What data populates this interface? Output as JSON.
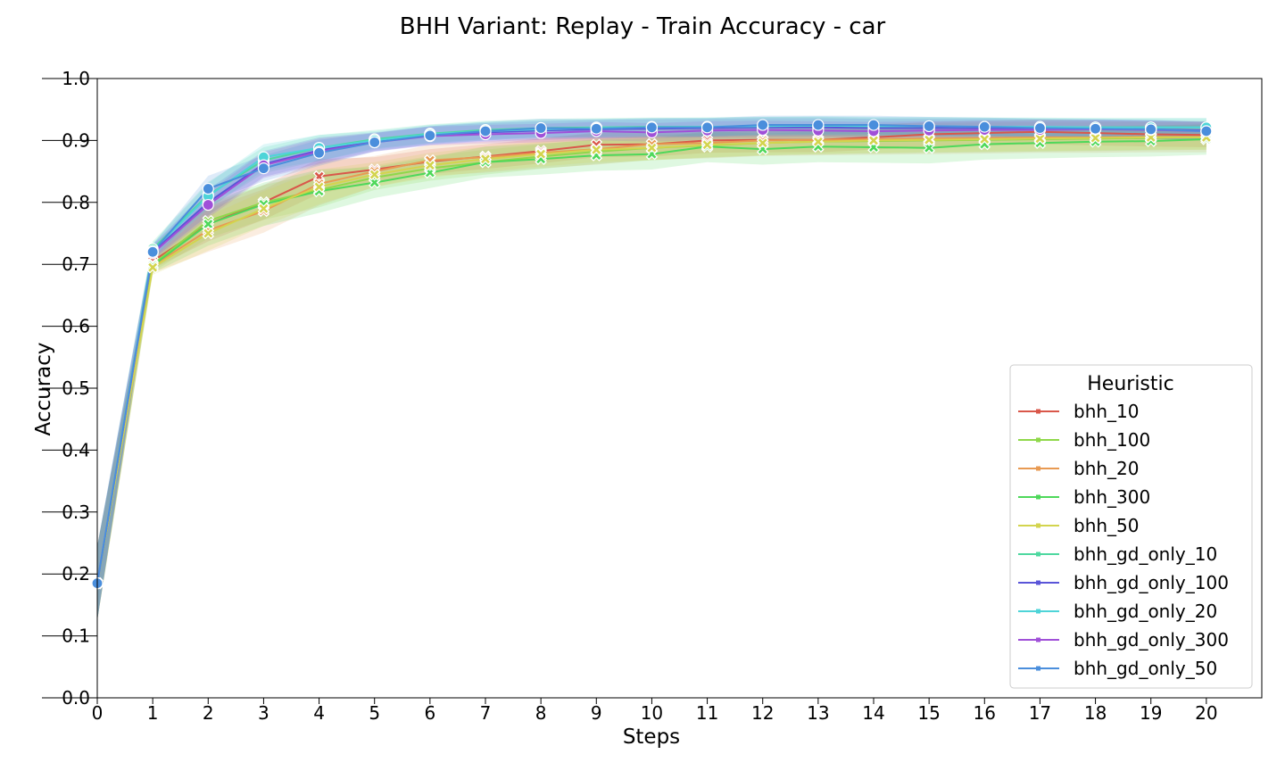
{
  "chart_data": {
    "type": "line",
    "title": "BHH Variant: Replay - Train Accuracy - car",
    "xlabel": "Steps",
    "ylabel": "Accuracy",
    "xlim": [
      0,
      21
    ],
    "ylim": [
      0.0,
      1.0
    ],
    "x": [
      0,
      1,
      2,
      3,
      4,
      5,
      6,
      7,
      8,
      9,
      10,
      11,
      12,
      13,
      14,
      15,
      16,
      17,
      18,
      19,
      20
    ],
    "x_ticks": [
      "0",
      "1",
      "2",
      "3",
      "4",
      "5",
      "6",
      "7",
      "8",
      "9",
      "10",
      "11",
      "12",
      "13",
      "14",
      "15",
      "16",
      "17",
      "18",
      "19",
      "20"
    ],
    "y_ticks": [
      "0.0",
      "0.1",
      "0.2",
      "0.3",
      "0.4",
      "0.5",
      "0.6",
      "0.7",
      "0.8",
      "0.9",
      "1.0"
    ],
    "grid": false,
    "legend": {
      "title": "Heuristic",
      "position": "lower-right"
    },
    "series": [
      {
        "name": "bhh_10",
        "color": "#d9574a",
        "marker": "x",
        "band": 0.02,
        "values": [
          0.185,
          0.705,
          0.765,
          0.8,
          0.842,
          0.853,
          0.866,
          0.874,
          0.883,
          0.893,
          0.894,
          0.9,
          0.901,
          0.901,
          0.905,
          0.91,
          0.912,
          0.914,
          0.912,
          0.91,
          0.909
        ]
      },
      {
        "name": "bhh_100",
        "color": "#8fd84a",
        "marker": "x",
        "band": 0.02,
        "values": [
          0.185,
          0.7,
          0.77,
          0.8,
          0.82,
          0.84,
          0.855,
          0.865,
          0.874,
          0.882,
          0.888,
          0.892,
          0.896,
          0.898,
          0.899,
          0.9,
          0.901,
          0.902,
          0.903,
          0.904,
          0.905
        ]
      },
      {
        "name": "bhh_20",
        "color": "#e89a52",
        "marker": "x",
        "band": 0.025,
        "values": [
          0.185,
          0.698,
          0.755,
          0.786,
          0.83,
          0.85,
          0.868,
          0.873,
          0.88,
          0.886,
          0.894,
          0.896,
          0.9,
          0.901,
          0.902,
          0.903,
          0.904,
          0.905,
          0.905,
          0.906,
          0.906
        ]
      },
      {
        "name": "bhh_300",
        "color": "#4ed85a",
        "marker": "x",
        "band": 0.025,
        "values": [
          0.185,
          0.698,
          0.765,
          0.797,
          0.818,
          0.832,
          0.848,
          0.865,
          0.87,
          0.876,
          0.878,
          0.89,
          0.886,
          0.89,
          0.889,
          0.888,
          0.894,
          0.896,
          0.898,
          0.899,
          0.902
        ]
      },
      {
        "name": "bhh_50",
        "color": "#d3d44e",
        "marker": "x",
        "band": 0.02,
        "values": [
          0.185,
          0.695,
          0.75,
          0.79,
          0.825,
          0.845,
          0.86,
          0.87,
          0.878,
          0.885,
          0.888,
          0.893,
          0.896,
          0.898,
          0.9,
          0.901,
          0.902,
          0.903,
          0.904,
          0.905,
          0.905
        ]
      },
      {
        "name": "bhh_gd_only_10",
        "color": "#4ed8a0",
        "marker": "o",
        "band": 0.015,
        "values": [
          0.185,
          0.725,
          0.812,
          0.868,
          0.888,
          0.902,
          0.911,
          0.917,
          0.92,
          0.921,
          0.922,
          0.922,
          0.923,
          0.923,
          0.922,
          0.922,
          0.922,
          0.921,
          0.921,
          0.921,
          0.921
        ]
      },
      {
        "name": "bhh_gd_only_100",
        "color": "#5a55d8",
        "marker": "o",
        "band": 0.015,
        "values": [
          0.185,
          0.72,
          0.8,
          0.862,
          0.884,
          0.898,
          0.908,
          0.913,
          0.916,
          0.918,
          0.919,
          0.92,
          0.921,
          0.921,
          0.92,
          0.92,
          0.92,
          0.919,
          0.919,
          0.918,
          0.916
        ]
      },
      {
        "name": "bhh_gd_only_20",
        "color": "#4ed4d8",
        "marker": "o",
        "band": 0.015,
        "values": [
          0.185,
          0.722,
          0.81,
          0.873,
          0.888,
          0.9,
          0.91,
          0.915,
          0.918,
          0.92,
          0.921,
          0.922,
          0.923,
          0.924,
          0.923,
          0.923,
          0.922,
          0.922,
          0.921,
          0.921,
          0.921
        ]
      },
      {
        "name": "bhh_gd_only_300",
        "color": "#a050d8",
        "marker": "o",
        "band": 0.015,
        "values": [
          0.185,
          0.718,
          0.796,
          0.86,
          0.882,
          0.897,
          0.907,
          0.91,
          0.912,
          0.915,
          0.913,
          0.916,
          0.917,
          0.916,
          0.915,
          0.916,
          0.917,
          0.917,
          0.918,
          0.917,
          0.915
        ]
      },
      {
        "name": "bhh_gd_only_50",
        "color": "#4a8edc",
        "marker": "o",
        "band": 0.015,
        "values": [
          0.185,
          0.72,
          0.822,
          0.855,
          0.88,
          0.897,
          0.908,
          0.915,
          0.92,
          0.919,
          0.921,
          0.921,
          0.925,
          0.925,
          0.925,
          0.923,
          0.922,
          0.92,
          0.919,
          0.918,
          0.915
        ]
      }
    ]
  }
}
